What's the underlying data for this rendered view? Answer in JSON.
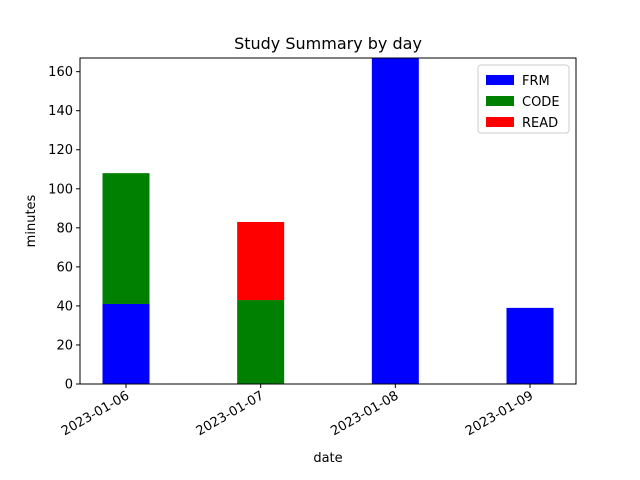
{
  "chart_data": {
    "type": "bar",
    "stacked": true,
    "title": "Study Summary by day",
    "xlabel": "date",
    "ylabel": "minutes",
    "categories": [
      "2023-01-06",
      "2023-01-07",
      "2023-01-08",
      "2023-01-09"
    ],
    "series": [
      {
        "name": "FRM",
        "color": "#0000ff",
        "values": [
          41,
          0,
          167,
          39
        ]
      },
      {
        "name": "CODE",
        "color": "#008000",
        "values": [
          67,
          43,
          0,
          0
        ]
      },
      {
        "name": "READ",
        "color": "#ff0000",
        "values": [
          0,
          40,
          0,
          0
        ]
      }
    ],
    "ylim": [
      0,
      167
    ],
    "yticks": [
      0,
      20,
      40,
      60,
      80,
      100,
      120,
      140,
      160
    ],
    "grid": false,
    "legend_position": "top-right"
  }
}
